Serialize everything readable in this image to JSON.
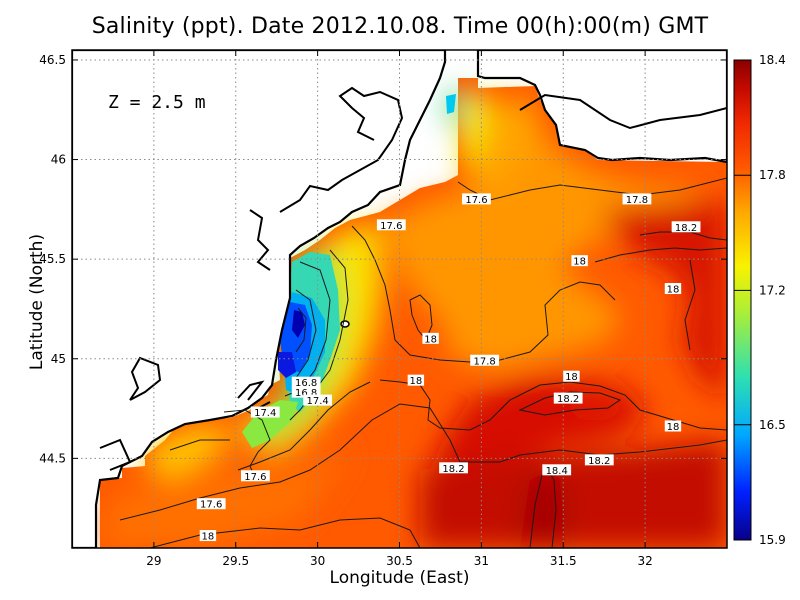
{
  "title": "Salinity (ppt). Date 2012.10.08. Time 00(h):00(m) GMT",
  "depth_label": "Z  =  2.5  m",
  "chart_data": {
    "type": "heatmap",
    "title": "Salinity (ppt). Date 2012.10.08. Time 00(h):00(m) GMT",
    "xlabel": "Longitude (East)",
    "ylabel": "Latitude (North)",
    "xlim": [
      28.5,
      32.5
    ],
    "ylim": [
      44.05,
      46.55
    ],
    "x_ticks": [
      29,
      29.5,
      30,
      30.5,
      31,
      31.5,
      32
    ],
    "x_tick_labels": [
      "29",
      "29.5",
      "30",
      "30.5",
      "31",
      "31.5",
      "32"
    ],
    "y_ticks": [
      44.5,
      45,
      45.5,
      46,
      46.5
    ],
    "y_tick_labels": [
      "44.5",
      "45",
      "45.5",
      "46",
      "46.5"
    ],
    "grid": true,
    "colorbar": {
      "min": 15.9,
      "max": 18.4,
      "ticks": [
        15.9,
        16.5,
        17.2,
        17.8,
        18.4
      ],
      "tick_labels": [
        "15.9",
        "16.5",
        "17.2",
        "17.8",
        "18.4"
      ],
      "colors": [
        "#08008a",
        "#0020ff",
        "#00a8ff",
        "#2ee0b0",
        "#a8ee3a",
        "#f8f200",
        "#ffaa00",
        "#ff5500",
        "#f02800",
        "#c40a00",
        "#8a0000"
      ]
    },
    "contour_labels": [
      {
        "value": "17.6",
        "lon": 30.97,
        "lat": 45.8
      },
      {
        "value": "17.6",
        "lon": 30.45,
        "lat": 45.67
      },
      {
        "value": "17.8",
        "lon": 31.95,
        "lat": 45.8
      },
      {
        "value": "18.2",
        "lon": 32.25,
        "lat": 45.66
      },
      {
        "value": "18",
        "lon": 31.6,
        "lat": 45.49
      },
      {
        "value": "18",
        "lon": 32.17,
        "lat": 45.35
      },
      {
        "value": "18",
        "lon": 30.69,
        "lat": 45.1
      },
      {
        "value": "17.8",
        "lon": 31.02,
        "lat": 44.99
      },
      {
        "value": "18",
        "lon": 30.6,
        "lat": 44.89
      },
      {
        "value": "18",
        "lon": 31.55,
        "lat": 44.91
      },
      {
        "value": "18.2",
        "lon": 31.53,
        "lat": 44.8
      },
      {
        "value": "18",
        "lon": 32.17,
        "lat": 44.66
      },
      {
        "value": "16.8",
        "lon": 29.93,
        "lat": 44.88
      },
      {
        "value": "16.8",
        "lon": 29.93,
        "lat": 44.83
      },
      {
        "value": "17.4",
        "lon": 30,
        "lat": 44.79
      },
      {
        "value": "17.4",
        "lon": 29.68,
        "lat": 44.73
      },
      {
        "value": "17.6",
        "lon": 29.62,
        "lat": 44.41
      },
      {
        "value": "18.2",
        "lon": 30.83,
        "lat": 44.45
      },
      {
        "value": "18.2",
        "lon": 31.72,
        "lat": 44.49
      },
      {
        "value": "18.4",
        "lon": 31.46,
        "lat": 44.44
      },
      {
        "value": "17.6",
        "lon": 29.35,
        "lat": 44.27
      },
      {
        "value": "18",
        "lon": 29.33,
        "lat": 44.11
      }
    ]
  }
}
